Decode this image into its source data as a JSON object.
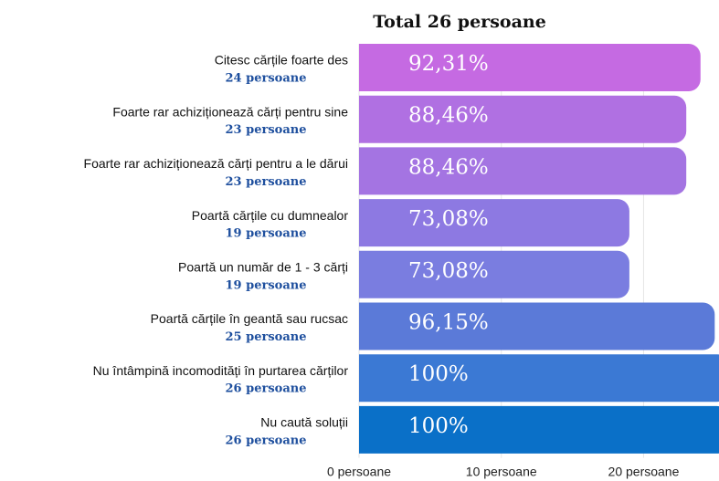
{
  "chart_data": {
    "type": "barh",
    "title": "Total 26 persoane",
    "categories": [
      "Citesc cărțile foarte des",
      "Foarte rar achiziționează cărți pentru sine",
      "Foarte rar achiziționează cărți pentru a le dărui",
      "Poartă cărțile cu dumnealor",
      "Poartă un număr de 1 - 3 cărți",
      "Poartă cărțile  în geantă sau rucsac",
      "Nu întâmpină incomodități în purtarea cărților",
      "Nu caută soluții"
    ],
    "values": [
      24,
      23,
      23,
      19,
      19,
      25,
      26,
      26
    ],
    "value_labels": [
      "24 persoane",
      "23 persoane",
      "23 persoane",
      "19 persoane",
      "19 persoane",
      "25 persoane",
      "26 persoane",
      "26 persoane"
    ],
    "percents": [
      92.31,
      88.46,
      88.46,
      73.08,
      73.08,
      96.15,
      100,
      100
    ],
    "percent_labels": [
      "92,31%",
      "88,46%",
      "88,46%",
      "73,08%",
      "73,08%",
      "96,15%",
      "100%",
      "100%"
    ],
    "colors": [
      "#c56ae2",
      "#b070e2",
      "#a474e2",
      "#8d79e2",
      "#7a7de0",
      "#5b7ad8",
      "#3b79d4",
      "#0a70c8"
    ],
    "xlim": [
      0,
      25.3
    ],
    "xticks": [
      {
        "value": 0,
        "label": "0 persoane"
      },
      {
        "value": 10,
        "label": "10 persoane"
      },
      {
        "value": 20,
        "label": "20 persoane"
      }
    ],
    "grid": true
  }
}
